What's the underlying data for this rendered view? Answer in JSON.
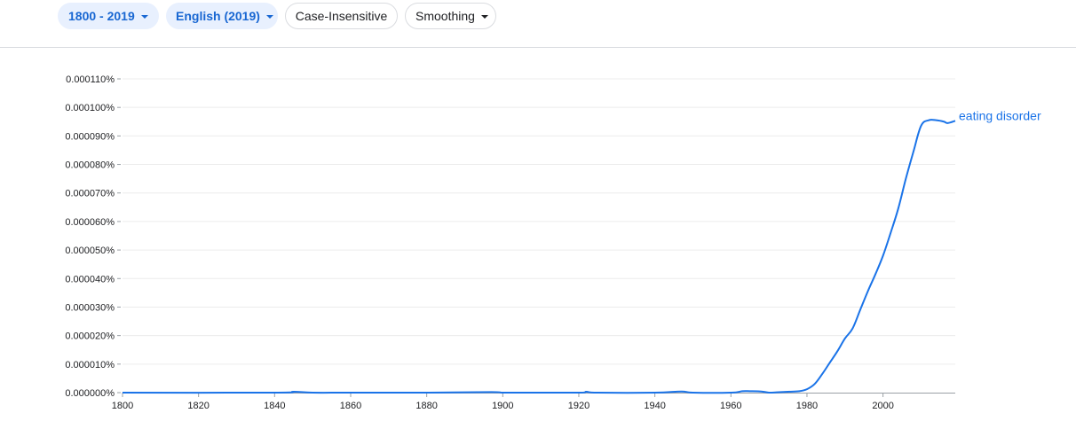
{
  "toolbar": {
    "year_range": "1800 - 2019",
    "corpus": "English (2019)",
    "case": "Case-Insensitive",
    "smoothing": "Smoothing"
  },
  "colors": {
    "series": "#1a73e8",
    "chip_bg": "#e8f0fe",
    "chip_text": "#1967d2",
    "grid": "#ececec",
    "axis": "#9aa0a6"
  },
  "chart_data": {
    "type": "line",
    "title": "",
    "xlabel": "",
    "ylabel": "",
    "xlim": [
      1800,
      2019
    ],
    "ylim": [
      0,
      0.00011
    ],
    "grid": true,
    "x_ticks": [
      "1800",
      "1820",
      "1840",
      "1860",
      "1880",
      "1900",
      "1920",
      "1940",
      "1960",
      "1980",
      "2000"
    ],
    "y_ticks": [
      "0.000000%",
      "0.000010%",
      "0.000020%",
      "0.000030%",
      "0.000040%",
      "0.000050%",
      "0.000060%",
      "0.000070%",
      "0.000080%",
      "0.000090%",
      "0.000100%",
      "0.000110%"
    ],
    "series": [
      {
        "name": "eating disorder",
        "x": [
          1800,
          1840,
          1845,
          1850,
          1860,
          1880,
          1897,
          1900,
          1905,
          1920,
          1922,
          1925,
          1940,
          1947,
          1950,
          1960,
          1963,
          1965,
          1968,
          1970,
          1972,
          1975,
          1978,
          1980,
          1982,
          1984,
          1986,
          1988,
          1990,
          1992,
          1994,
          1996,
          1998,
          2000,
          2002,
          2004,
          2006,
          2008,
          2010,
          2012,
          2014,
          2016,
          2017,
          2019
        ],
        "y": [
          0,
          0,
          3e-07,
          0,
          0,
          0,
          2e-07,
          0,
          0,
          0,
          3e-07,
          0,
          0,
          4e-07,
          0,
          0,
          5e-07,
          5e-07,
          4e-07,
          0,
          1e-07,
          3e-07,
          5e-07,
          1.2e-06,
          3e-06,
          6.5e-06,
          1.05e-05,
          1.45e-05,
          1.9e-05,
          2.25e-05,
          2.9e-05,
          3.55e-05,
          4.15e-05,
          4.8e-05,
          5.6e-05,
          6.45e-05,
          7.5e-05,
          8.45e-05,
          9.35e-05,
          9.55e-05,
          9.55e-05,
          9.5e-05,
          9.45e-05,
          9.53e-05
        ]
      }
    ]
  }
}
